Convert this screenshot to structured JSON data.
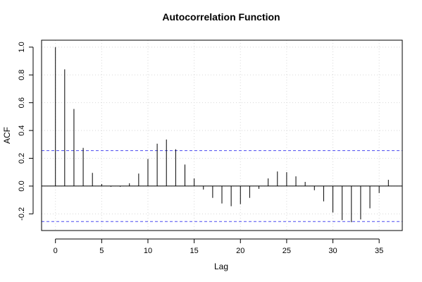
{
  "chart_data": {
    "type": "bar",
    "title": "Autocorrelation Function",
    "xlabel": "Lag",
    "ylabel": "ACF",
    "xlim": [
      -1.5,
      37.5
    ],
    "ylim": [
      -0.32,
      1.05
    ],
    "xticks": [
      0,
      5,
      10,
      15,
      20,
      25,
      30,
      35
    ],
    "yticks": [
      -0.2,
      0.0,
      0.2,
      0.4,
      0.6,
      0.8,
      1.0
    ],
    "ytick_labels": [
      "-0.2",
      "0.0",
      "0.2",
      "0.4",
      "0.6",
      "0.8",
      "1.0"
    ],
    "grid": true,
    "confidence_bounds": [
      0.255,
      -0.255
    ],
    "confidence_color": "#4a4af0",
    "lags": [
      0,
      1,
      2,
      3,
      4,
      5,
      6,
      7,
      8,
      9,
      10,
      11,
      12,
      13,
      14,
      15,
      16,
      17,
      18,
      19,
      20,
      21,
      22,
      23,
      24,
      25,
      26,
      27,
      28,
      29,
      30,
      31,
      32,
      33,
      34,
      35,
      36
    ],
    "values": [
      1.0,
      0.84,
      0.555,
      0.275,
      0.095,
      0.015,
      -0.005,
      -0.005,
      0.02,
      0.09,
      0.195,
      0.305,
      0.335,
      0.265,
      0.155,
      0.055,
      -0.025,
      -0.085,
      -0.125,
      -0.145,
      -0.13,
      -0.085,
      -0.02,
      0.055,
      0.105,
      0.1,
      0.07,
      0.03,
      -0.03,
      -0.11,
      -0.19,
      -0.245,
      -0.26,
      -0.24,
      -0.16,
      -0.05,
      0.045
    ]
  }
}
